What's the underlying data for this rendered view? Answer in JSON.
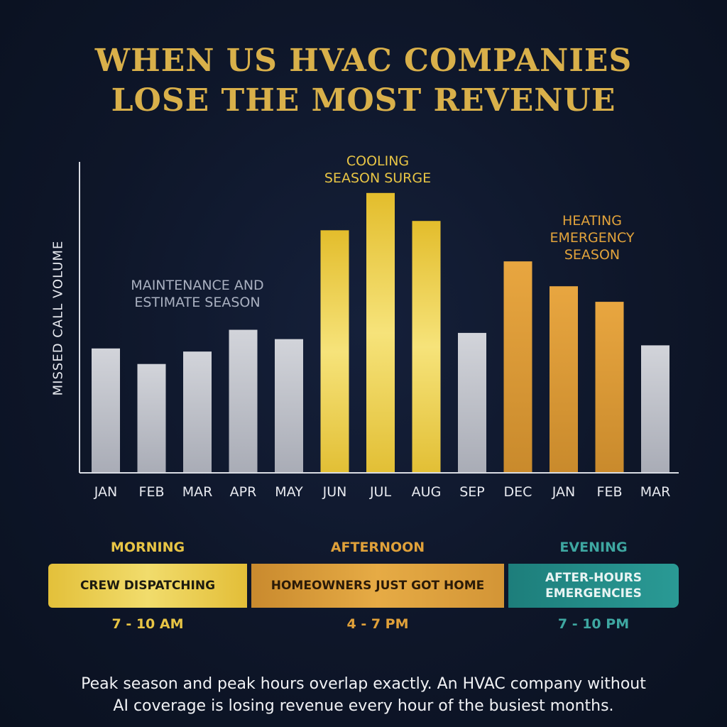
{
  "title": {
    "line1": "WHEN US HVAC COMPANIES",
    "line2": "LOSE THE MOST REVENUE"
  },
  "chart_data": {
    "type": "bar",
    "ylabel": "MISSED CALL VOLUME",
    "xlabel": "",
    "categories": [
      "JAN",
      "FEB",
      "MAR",
      "APR",
      "MAY",
      "JUN",
      "JUL",
      "AUG",
      "SEP",
      "DEC",
      "JAN",
      "FEB",
      "MAR"
    ],
    "values": [
      40,
      35,
      39,
      46,
      43,
      78,
      90,
      81,
      45,
      68,
      60,
      55,
      41
    ],
    "bar_groups": [
      "gray",
      "gray",
      "gray",
      "gray",
      "gray",
      "gold",
      "gold",
      "gold",
      "gray",
      "orange",
      "orange",
      "orange",
      "gray"
    ],
    "ylim": [
      0,
      100
    ],
    "colors": {
      "gray": "#c6c8cf",
      "gold": "#ebc93c",
      "orange": "#e4a33e",
      "axis": "#d8dbe2"
    },
    "annotations": [
      {
        "id": "maintenance",
        "lines": [
          "MAINTENANCE AND",
          "ESTIMATE SEASON"
        ],
        "color": "#a9b0c0"
      },
      {
        "id": "cooling",
        "lines": [
          "COOLING",
          "SEASON SURGE"
        ],
        "color": "#e8c545"
      },
      {
        "id": "heating",
        "lines": [
          "HEATING",
          "EMERGENCY",
          "SEASON"
        ],
        "color": "#e2a33b"
      }
    ]
  },
  "timeline": {
    "morning": {
      "label": "MORNING",
      "box": "CREW DISPATCHING",
      "time": "7 - 10 AM",
      "color": "#e8c545"
    },
    "afternoon": {
      "label": "AFTERNOON",
      "box": "HOMEOWNERS JUST GOT HOME",
      "time": "4 - 7 PM",
      "color": "#e0a13a"
    },
    "evening": {
      "label": "EVENING",
      "box_line1": "AFTER-HOURS",
      "box_line2": "EMERGENCIES",
      "time": "7 - 10 PM",
      "color": "#3ea7a1"
    }
  },
  "footnote": {
    "line1": "Peak season and peak hours overlap exactly. An HVAC company without",
    "line2": "AI coverage is losing revenue every hour of the busiest months."
  }
}
